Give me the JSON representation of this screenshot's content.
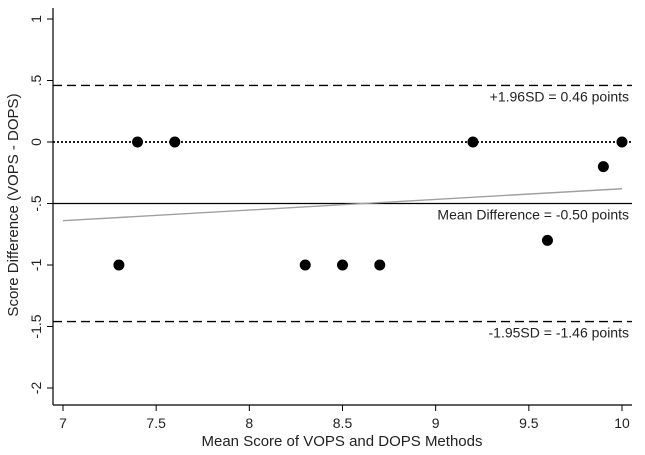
{
  "chart_data": {
    "type": "scatter",
    "xlabel": "Mean Score of VOPS and DOPS Methods",
    "ylabel": "Score Difference (VOPS - DOPS)",
    "xlim": [
      7,
      10
    ],
    "ylim": [
      -2,
      1
    ],
    "x_ticks": [
      "7",
      "7.5",
      "8",
      "8.5",
      "9",
      "9.5",
      "10"
    ],
    "y_ticks": [
      "-2",
      "-1.5",
      "-1",
      "-.5",
      "0",
      ".5",
      "1"
    ],
    "grid": false,
    "points": [
      {
        "x": 7.3,
        "y": -1.0
      },
      {
        "x": 7.4,
        "y": 0.0
      },
      {
        "x": 7.6,
        "y": 0.0
      },
      {
        "x": 8.3,
        "y": -1.0
      },
      {
        "x": 8.5,
        "y": -1.0
      },
      {
        "x": 8.7,
        "y": -1.0
      },
      {
        "x": 9.2,
        "y": 0.0
      },
      {
        "x": 9.6,
        "y": -0.8
      },
      {
        "x": 9.9,
        "y": -0.2
      },
      {
        "x": 10.0,
        "y": 0.0
      }
    ],
    "reference_lines": [
      {
        "y": 0.46,
        "style": "dashed",
        "label": "+1.96SD = 0.46 points"
      },
      {
        "y": 0.0,
        "style": "dotted",
        "label": ""
      },
      {
        "y": -0.5,
        "style": "solid",
        "label": "Mean Difference = -0.50 points"
      },
      {
        "y": -1.46,
        "style": "dashed",
        "label": "-1.95SD = -1.46 points"
      }
    ],
    "trend_line": {
      "from": [
        7.0,
        -0.64
      ],
      "to": [
        10.0,
        -0.38
      ],
      "color": "#a0a0a0"
    },
    "colors": {
      "points": "#000000",
      "reference": "#000000",
      "trend": "#a0a0a0"
    }
  }
}
